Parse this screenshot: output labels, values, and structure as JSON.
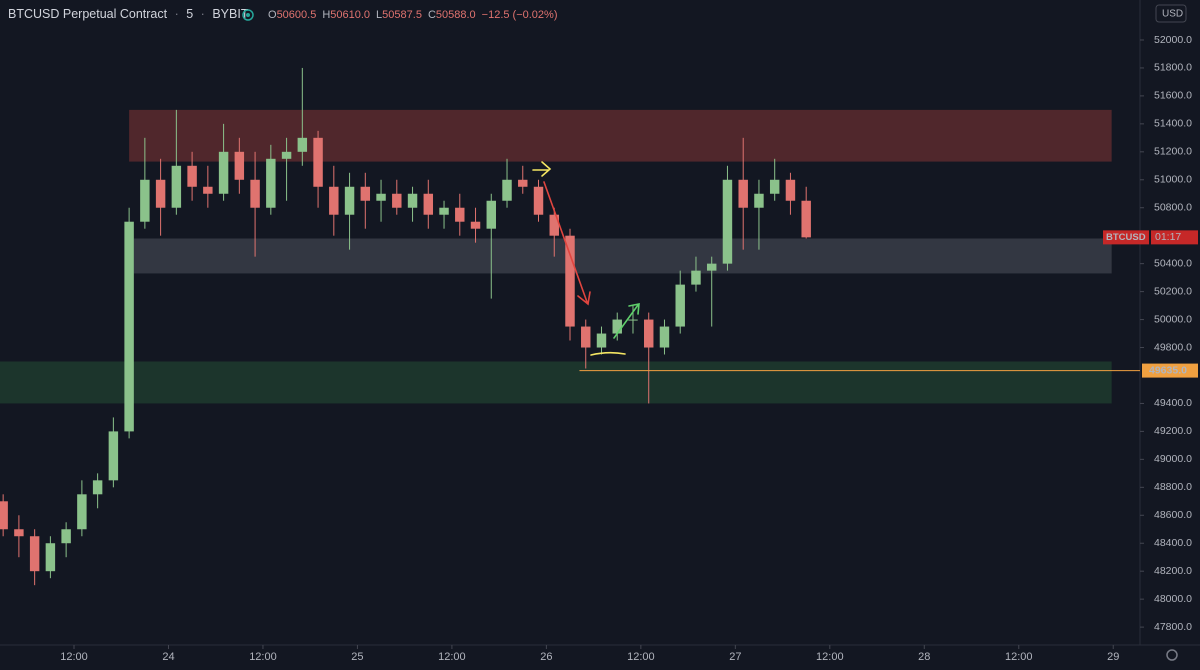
{
  "chart_data": {
    "type": "candlestick",
    "title": "BTCUSD Perpetual Contract",
    "interval": "5",
    "exchange": "BYBIT",
    "separator": "·",
    "ohlc_legend": [
      {
        "key": "O",
        "text": "50600.5"
      },
      {
        "key": "H",
        "text": "50610.0"
      },
      {
        "key": "L",
        "text": "50587.5"
      },
      {
        "key": "C",
        "text": "50588.0"
      }
    ],
    "change_text": "−12.5 (−0.02%)",
    "currency": "USD",
    "up_color": "#8bc28b",
    "down_color": "#e0736f",
    "x": [
      3,
      5,
      7,
      9,
      11,
      13,
      15,
      17,
      19,
      21,
      23,
      25,
      27,
      29,
      31,
      33,
      35,
      37,
      39,
      41,
      43,
      45,
      47,
      49,
      51,
      53,
      55,
      57,
      59,
      61,
      63,
      65,
      67,
      69,
      71,
      73,
      75,
      77,
      79,
      81,
      83,
      85,
      87,
      89,
      91,
      93,
      95,
      97,
      99,
      101,
      103,
      105
    ],
    "ohlc": [
      [
        48700,
        48750,
        48450,
        48500
      ],
      [
        48500,
        48600,
        48300,
        48450
      ],
      [
        48450,
        48500,
        48100,
        48200
      ],
      [
        48200,
        48450,
        48150,
        48400
      ],
      [
        48400,
        48550,
        48300,
        48500
      ],
      [
        48500,
        48850,
        48450,
        48750
      ],
      [
        48750,
        48900,
        48650,
        48850
      ],
      [
        48850,
        49300,
        48800,
        49200
      ],
      [
        49200,
        50800,
        49150,
        50700
      ],
      [
        50700,
        51300,
        50650,
        51000
      ],
      [
        51000,
        51150,
        50600,
        50800
      ],
      [
        50800,
        51500,
        50750,
        51100
      ],
      [
        51100,
        51200,
        50850,
        50950
      ],
      [
        50950,
        51100,
        50800,
        50900
      ],
      [
        50900,
        51400,
        50850,
        51200
      ],
      [
        51200,
        51300,
        50900,
        51000
      ],
      [
        51000,
        51200,
        50450,
        50800
      ],
      [
        50800,
        51250,
        50750,
        51150
      ],
      [
        51150,
        51300,
        50850,
        51200
      ],
      [
        51200,
        51800,
        51100,
        51300
      ],
      [
        51300,
        51350,
        50800,
        50950
      ],
      [
        50950,
        51100,
        50600,
        50750
      ],
      [
        50750,
        51050,
        50500,
        50950
      ],
      [
        50950,
        51050,
        50650,
        50850
      ],
      [
        50850,
        51000,
        50700,
        50900
      ],
      [
        50900,
        51000,
        50750,
        50800
      ],
      [
        50800,
        50950,
        50700,
        50900
      ],
      [
        50900,
        51000,
        50650,
        50750
      ],
      [
        50750,
        50850,
        50650,
        50800
      ],
      [
        50800,
        50900,
        50600,
        50700
      ],
      [
        50700,
        50800,
        50550,
        50650
      ],
      [
        50650,
        50900,
        50150,
        50850
      ],
      [
        50850,
        51150,
        50800,
        51000
      ],
      [
        51000,
        51100,
        50900,
        50950
      ],
      [
        50950,
        51000,
        50700,
        50750
      ],
      [
        50750,
        50800,
        50450,
        50600
      ],
      [
        50600,
        50650,
        49850,
        49950
      ],
      [
        49950,
        50000,
        49650,
        49800
      ],
      [
        49800,
        49950,
        49750,
        49900
      ],
      [
        49900,
        50050,
        49850,
        50000
      ],
      [
        50000,
        50100,
        49900,
        50000
      ],
      [
        50000,
        50050,
        49400,
        49800
      ],
      [
        49800,
        50000,
        49750,
        49950
      ],
      [
        49950,
        50350,
        49900,
        50250
      ],
      [
        50250,
        50450,
        50200,
        50350
      ],
      [
        50350,
        50450,
        49950,
        50400
      ],
      [
        50400,
        51100,
        50350,
        51000
      ],
      [
        51000,
        51300,
        50500,
        50800
      ],
      [
        50800,
        51000,
        50500,
        50900
      ],
      [
        50900,
        51150,
        50850,
        51000
      ],
      [
        51000,
        51050,
        50750,
        50850
      ],
      [
        50850,
        50950,
        50580,
        50588
      ]
    ],
    "bands": [
      {
        "from": 51130,
        "to": 51500,
        "x": [
          19,
          143.8
        ],
        "color": "#5c2a2e"
      },
      {
        "from": 50330,
        "to": 50580,
        "x": [
          19.6,
          143.8
        ],
        "color": "#3a3d48"
      },
      {
        "from": 49400,
        "to": 49700,
        "x": [
          2.6,
          143.8
        ],
        "color": "#1f3b2e"
      }
    ],
    "hline": {
      "value": 49635,
      "label": "49635.0",
      "x": [
        76.2,
        147.4
      ],
      "color": "#f0a040"
    },
    "price_tag": {
      "symbol": "BTCUSD",
      "countdown": "01:17",
      "value": 50588,
      "color": "#c62828"
    },
    "xlim": [
      2.6,
      147.4
    ],
    "ylim": [
      47672,
      52286
    ],
    "xticks": [
      {
        "value": 12,
        "label": "12:00"
      },
      24,
      {
        "value": 36,
        "label": "12:00"
      },
      {
        "value": 48,
        "label": "25"
      },
      {
        "value": 60,
        "label": "12:00"
      },
      {
        "value": 72,
        "label": "26"
      },
      {
        "value": 84,
        "label": "12:00"
      },
      {
        "value": 96,
        "label": "27"
      },
      {
        "value": 108,
        "label": "12:00"
      },
      {
        "value": 120,
        "label": "28"
      },
      {
        "value": 132,
        "label": "12:00"
      },
      {
        "value": 144,
        "label": "29"
      }
    ],
    "yticks": [
      {
        "value": 47800,
        "label": "47800.0"
      },
      {
        "value": 48000,
        "label": "48000.0"
      },
      {
        "value": 48200,
        "label": "48200.0"
      },
      {
        "value": 48400,
        "label": "48400.0"
      },
      {
        "value": 48600,
        "label": "48600.0"
      },
      {
        "value": 48800,
        "label": "48800.0"
      },
      {
        "value": 49000,
        "label": "49000.0"
      },
      {
        "value": 49200,
        "label": "49200.0"
      },
      {
        "value": 49400,
        "label": "49400.0"
      },
      {
        "value": 49800,
        "label": "49800.0"
      },
      {
        "value": 50000,
        "label": "50000.0"
      },
      {
        "value": 50200,
        "label": "50200.0"
      },
      {
        "value": 50400,
        "label": "50400.0"
      },
      {
        "value": 50800,
        "label": "50800.0"
      },
      {
        "value": 51000,
        "label": "51000.0"
      },
      {
        "value": 51200,
        "label": "51200.0"
      },
      {
        "value": 51400,
        "label": "51400.0"
      },
      {
        "value": 51600,
        "label": "51600.0"
      },
      {
        "value": 51800,
        "label": "51800.0"
      },
      {
        "value": 52000,
        "label": "52000.0"
      }
    ],
    "grid": false
  }
}
